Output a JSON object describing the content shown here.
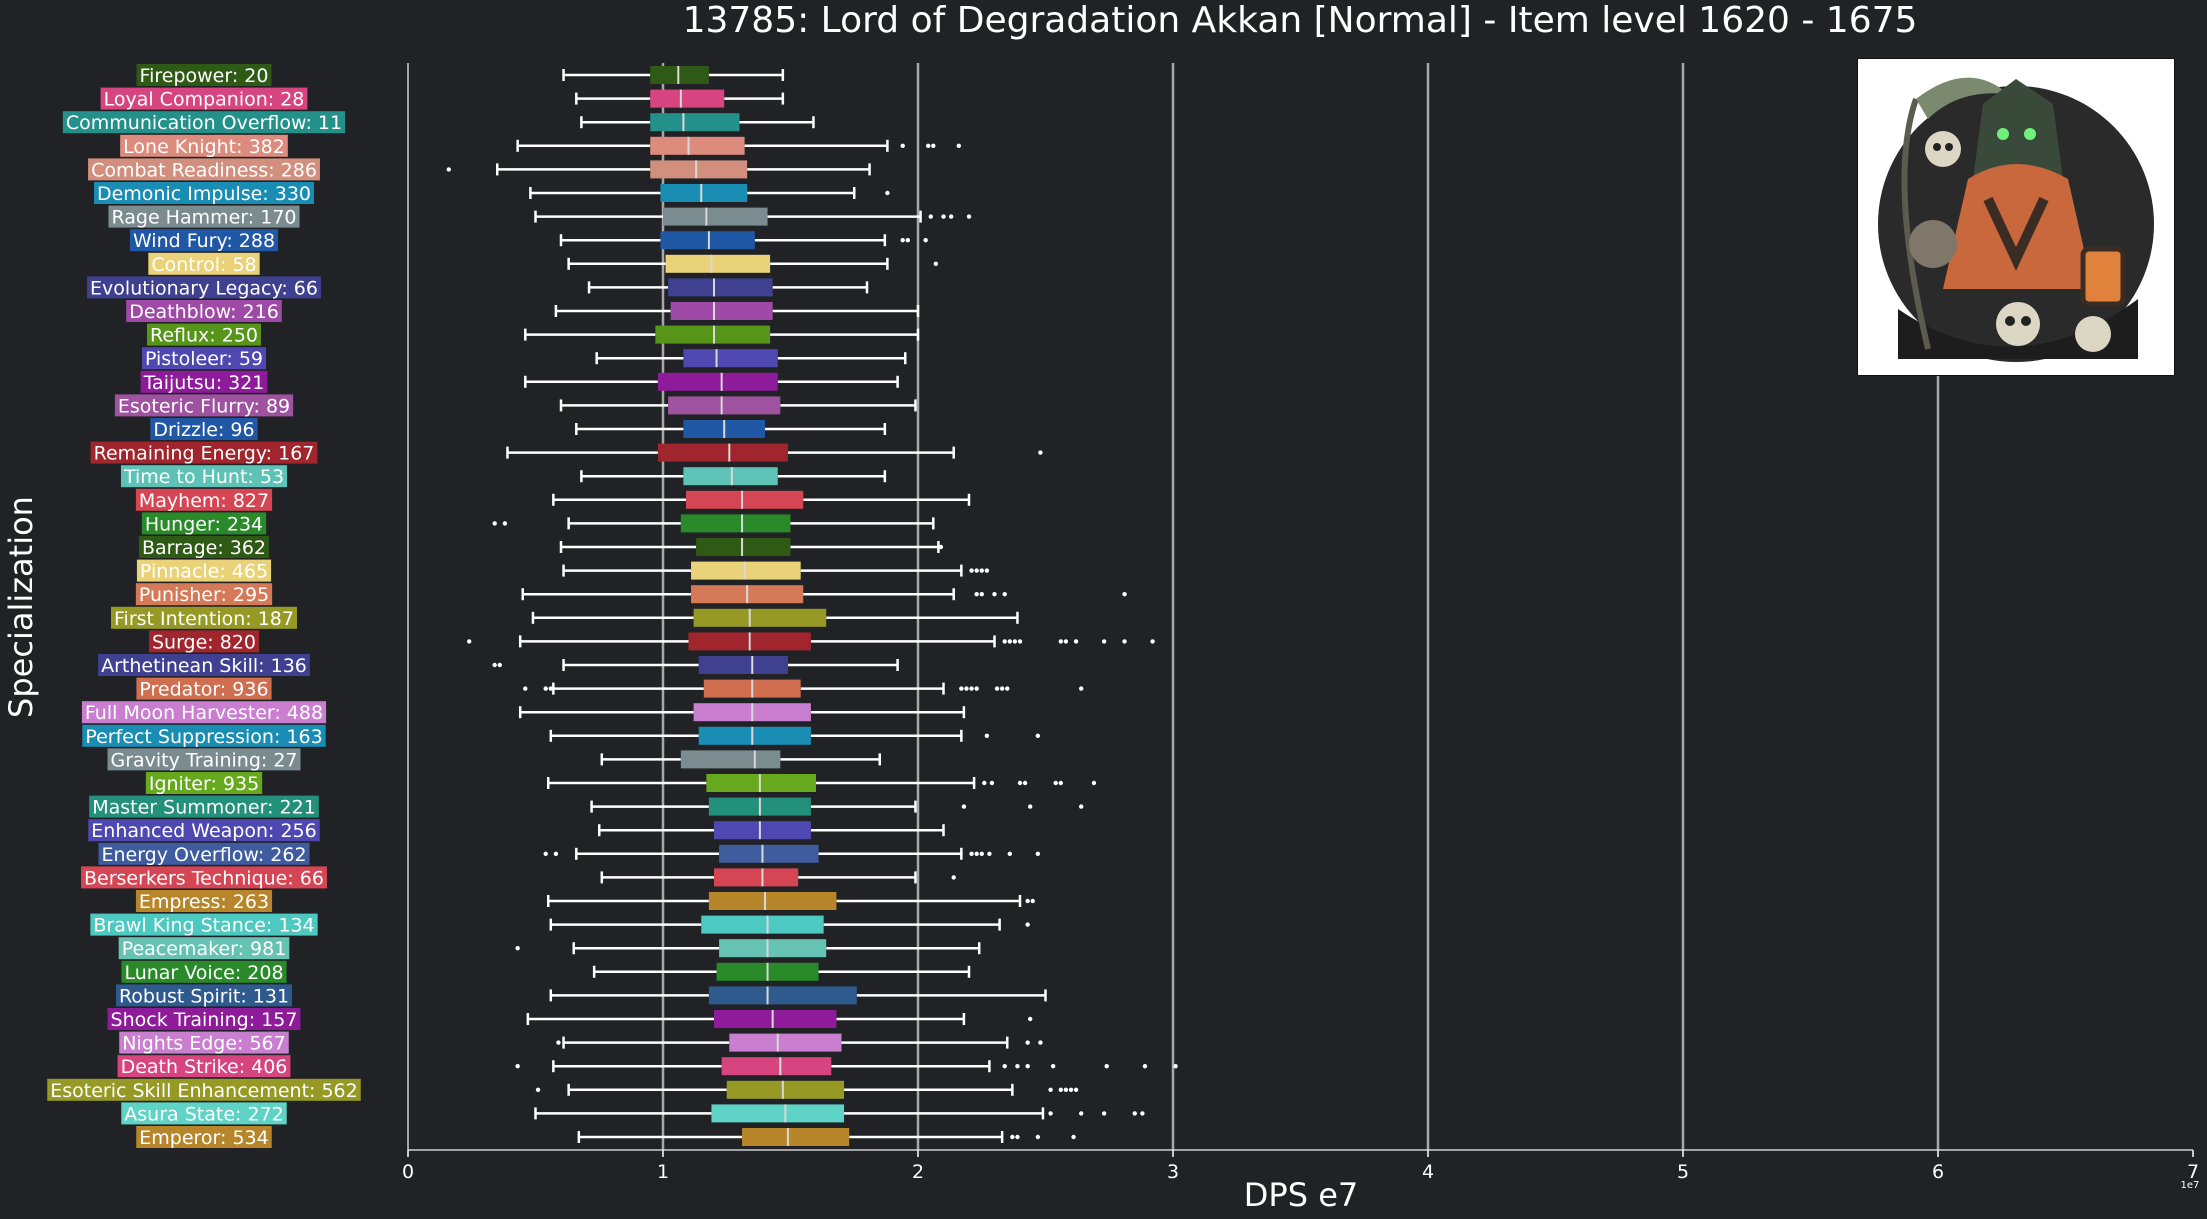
{
  "chart_data": {
    "type": "boxplot",
    "title": "13785: Lord of Degradation Akkan [Normal] - Item level 1620 - 1675",
    "xlabel": "DPS e7",
    "ylabel": "Specialization",
    "offset_text": "1e7",
    "xlim": [
      0,
      7
    ],
    "xticks": [
      0,
      1,
      2,
      3,
      4,
      5,
      6,
      7
    ],
    "grid": "vertical",
    "text_color": "#ffffff",
    "background": "#202226",
    "series": [
      {
        "label": "Firepower: 20",
        "color": "#2f5a16",
        "whislo": 0.61,
        "q1": 0.95,
        "med": 1.06,
        "q3": 1.18,
        "whishi": 1.47,
        "fliers": []
      },
      {
        "label": "Loyal Companion: 28",
        "color": "#d6457f",
        "whislo": 0.66,
        "q1": 0.95,
        "med": 1.07,
        "q3": 1.24,
        "whishi": 1.47,
        "fliers": []
      },
      {
        "label": "Communication Overflow: 11",
        "color": "#23908a",
        "whislo": 0.68,
        "q1": 0.95,
        "med": 1.08,
        "q3": 1.3,
        "whishi": 1.59,
        "fliers": []
      },
      {
        "label": "Lone Knight: 382",
        "color": "#dc8b7c",
        "whislo": 0.43,
        "q1": 0.95,
        "med": 1.1,
        "q3": 1.32,
        "whishi": 1.88,
        "fliers": [
          1.94,
          2.04,
          2.06,
          2.16
        ]
      },
      {
        "label": "Combat Readiness: 286",
        "color": "#d38f7e",
        "whislo": 0.35,
        "q1": 0.95,
        "med": 1.13,
        "q3": 1.33,
        "whishi": 1.81,
        "fliers": [
          0.16
        ]
      },
      {
        "label": "Demonic Impulse: 330",
        "color": "#1a8db4",
        "whislo": 0.48,
        "q1": 0.99,
        "med": 1.15,
        "q3": 1.33,
        "whishi": 1.75,
        "fliers": [
          1.88
        ]
      },
      {
        "label": "Rage Hammer: 170",
        "color": "#7b8c91",
        "whislo": 0.5,
        "q1": 1.0,
        "med": 1.17,
        "q3": 1.41,
        "whishi": 2.01,
        "fliers": [
          2.05,
          2.1,
          2.13,
          2.2
        ]
      },
      {
        "label": "Wind Fury: 288",
        "color": "#2058a6",
        "whislo": 0.6,
        "q1": 0.99,
        "med": 1.18,
        "q3": 1.36,
        "whishi": 1.87,
        "fliers": [
          1.94,
          1.96,
          2.03
        ]
      },
      {
        "label": "Control: 58",
        "color": "#ead279",
        "whislo": 0.63,
        "q1": 1.01,
        "med": 1.19,
        "q3": 1.42,
        "whishi": 1.88,
        "fliers": [
          2.07
        ]
      },
      {
        "label": "Evolutionary Legacy: 66",
        "color": "#3f4090",
        "whislo": 0.71,
        "q1": 1.02,
        "med": 1.2,
        "q3": 1.43,
        "whishi": 1.8,
        "fliers": []
      },
      {
        "label": "Deathblow: 216",
        "color": "#9e4aa6",
        "whislo": 0.58,
        "q1": 1.03,
        "med": 1.2,
        "q3": 1.43,
        "whishi": 2.0,
        "fliers": []
      },
      {
        "label": "Reflux: 250",
        "color": "#56941a",
        "whislo": 0.46,
        "q1": 0.97,
        "med": 1.2,
        "q3": 1.42,
        "whishi": 2.0,
        "fliers": []
      },
      {
        "label": "Pistoleer: 59",
        "color": "#4f48b0",
        "whislo": 0.74,
        "q1": 1.08,
        "med": 1.21,
        "q3": 1.45,
        "whishi": 1.95,
        "fliers": []
      },
      {
        "label": "Taijutsu: 321",
        "color": "#8e1b9a",
        "whislo": 0.46,
        "q1": 0.98,
        "med": 1.23,
        "q3": 1.45,
        "whishi": 1.92,
        "fliers": []
      },
      {
        "label": "Esoteric Flurry: 89",
        "color": "#9e52a0",
        "whislo": 0.6,
        "q1": 1.02,
        "med": 1.23,
        "q3": 1.46,
        "whishi": 1.99,
        "fliers": []
      },
      {
        "label": "Drizzle: 96",
        "color": "#2058a6",
        "whislo": 0.66,
        "q1": 1.08,
        "med": 1.24,
        "q3": 1.4,
        "whishi": 1.87,
        "fliers": []
      },
      {
        "label": "Remaining Energy: 167",
        "color": "#a0252c",
        "whislo": 0.39,
        "q1": 0.98,
        "med": 1.26,
        "q3": 1.49,
        "whishi": 2.14,
        "fliers": [
          2.48
        ]
      },
      {
        "label": "Time to Hunt: 53",
        "color": "#5fc2b7",
        "whislo": 0.68,
        "q1": 1.08,
        "med": 1.27,
        "q3": 1.45,
        "whishi": 1.87,
        "fliers": []
      },
      {
        "label": "Mayhem: 827",
        "color": "#d64553",
        "whislo": 0.57,
        "q1": 1.09,
        "med": 1.31,
        "q3": 1.55,
        "whishi": 2.2,
        "fliers": []
      },
      {
        "label": "Hunger: 234",
        "color": "#2a8a2a",
        "whislo": 0.63,
        "q1": 1.07,
        "med": 1.31,
        "q3": 1.5,
        "whishi": 2.06,
        "fliers": [
          0.34,
          0.38
        ]
      },
      {
        "label": "Barrage: 362",
        "color": "#2f5a16",
        "whislo": 0.6,
        "q1": 1.13,
        "med": 1.31,
        "q3": 1.5,
        "whishi": 2.08,
        "fliers": [
          2.09
        ]
      },
      {
        "label": "Pinnacle: 465",
        "color": "#ead279",
        "whislo": 0.61,
        "q1": 1.11,
        "med": 1.32,
        "q3": 1.54,
        "whishi": 2.17,
        "fliers": [
          2.21,
          2.23,
          2.25,
          2.27
        ]
      },
      {
        "label": "Punisher: 295",
        "color": "#d57a58",
        "whislo": 0.45,
        "q1": 1.11,
        "med": 1.33,
        "q3": 1.55,
        "whishi": 2.14,
        "fliers": [
          2.23,
          2.25,
          2.3,
          2.34,
          2.81
        ]
      },
      {
        "label": "First Intention: 187",
        "color": "#969a24",
        "whislo": 0.49,
        "q1": 1.12,
        "med": 1.34,
        "q3": 1.64,
        "whishi": 2.39,
        "fliers": []
      },
      {
        "label": "Surge: 820",
        "color": "#a0252c",
        "whislo": 0.44,
        "q1": 1.1,
        "med": 1.34,
        "q3": 1.58,
        "whishi": 2.3,
        "fliers": [
          0.24,
          2.34,
          2.36,
          2.38,
          2.4,
          2.56,
          2.58,
          2.62,
          2.73,
          2.81,
          2.92
        ]
      },
      {
        "label": "Arthetinean Skill: 136",
        "color": "#3f4090",
        "whislo": 0.61,
        "q1": 1.14,
        "med": 1.35,
        "q3": 1.49,
        "whishi": 1.92,
        "fliers": [
          0.34,
          0.36
        ]
      },
      {
        "label": "Predator: 936",
        "color": "#d06e50",
        "whislo": 0.57,
        "q1": 1.16,
        "med": 1.35,
        "q3": 1.54,
        "whishi": 2.1,
        "fliers": [
          0.46,
          0.54,
          0.56,
          2.17,
          2.19,
          2.21,
          2.23,
          2.31,
          2.33,
          2.35,
          2.64
        ]
      },
      {
        "label": "Full Moon Harvester: 488",
        "color": "#c97ecf",
        "whislo": 0.44,
        "q1": 1.12,
        "med": 1.35,
        "q3": 1.58,
        "whishi": 2.18,
        "fliers": []
      },
      {
        "label": "Perfect Suppression: 163",
        "color": "#1a8db4",
        "whislo": 0.56,
        "q1": 1.14,
        "med": 1.35,
        "q3": 1.58,
        "whishi": 2.17,
        "fliers": [
          2.27,
          2.47
        ]
      },
      {
        "label": "Gravity Training: 27",
        "color": "#7b8c91",
        "whislo": 0.76,
        "q1": 1.07,
        "med": 1.36,
        "q3": 1.46,
        "whishi": 1.85,
        "fliers": []
      },
      {
        "label": "Igniter: 935",
        "color": "#66a81e",
        "whislo": 0.55,
        "q1": 1.17,
        "med": 1.38,
        "q3": 1.6,
        "whishi": 2.22,
        "fliers": [
          2.26,
          2.29,
          2.4,
          2.42,
          2.54,
          2.56,
          2.69
        ]
      },
      {
        "label": "Master Summoner: 221",
        "color": "#22907a",
        "whislo": 0.72,
        "q1": 1.18,
        "med": 1.38,
        "q3": 1.58,
        "whishi": 1.99,
        "fliers": [
          2.18,
          2.44,
          2.64
        ]
      },
      {
        "label": "Enhanced Weapon: 256",
        "color": "#4f48b0",
        "whislo": 0.75,
        "q1": 1.2,
        "med": 1.38,
        "q3": 1.58,
        "whishi": 2.1,
        "fliers": []
      },
      {
        "label": "Energy Overflow: 262",
        "color": "#3e5c9e",
        "whislo": 0.66,
        "q1": 1.22,
        "med": 1.39,
        "q3": 1.61,
        "whishi": 2.17,
        "fliers": [
          0.54,
          0.58,
          2.21,
          2.23,
          2.25,
          2.28,
          2.36,
          2.47
        ]
      },
      {
        "label": "Berserkers Technique: 66",
        "color": "#d64553",
        "whislo": 0.76,
        "q1": 1.2,
        "med": 1.39,
        "q3": 1.53,
        "whishi": 1.99,
        "fliers": [
          2.14
        ]
      },
      {
        "label": "Empress: 263",
        "color": "#b8862a",
        "whislo": 0.55,
        "q1": 1.18,
        "med": 1.4,
        "q3": 1.68,
        "whishi": 2.4,
        "fliers": [
          2.43,
          2.45
        ]
      },
      {
        "label": "Brawl King Stance: 134",
        "color": "#4ec9c1",
        "whislo": 0.56,
        "q1": 1.15,
        "med": 1.41,
        "q3": 1.63,
        "whishi": 2.32,
        "fliers": [
          2.43
        ]
      },
      {
        "label": "Peacemaker: 981",
        "color": "#66c2b2",
        "whislo": 0.65,
        "q1": 1.22,
        "med": 1.41,
        "q3": 1.64,
        "whishi": 2.24,
        "fliers": [
          0.43
        ]
      },
      {
        "label": "Lunar Voice: 208",
        "color": "#2a8a2a",
        "whislo": 0.73,
        "q1": 1.21,
        "med": 1.41,
        "q3": 1.61,
        "whishi": 2.2,
        "fliers": []
      },
      {
        "label": "Robust Spirit: 131",
        "color": "#2e5a8e",
        "whislo": 0.56,
        "q1": 1.18,
        "med": 1.41,
        "q3": 1.76,
        "whishi": 2.5,
        "fliers": []
      },
      {
        "label": "Shock Training: 157",
        "color": "#8e1b9a",
        "whislo": 0.47,
        "q1": 1.2,
        "med": 1.43,
        "q3": 1.68,
        "whishi": 2.18,
        "fliers": [
          2.44
        ]
      },
      {
        "label": "Nights Edge: 567",
        "color": "#c97ecf",
        "whislo": 0.61,
        "q1": 1.26,
        "med": 1.45,
        "q3": 1.7,
        "whishi": 2.35,
        "fliers": [
          0.59,
          2.43,
          2.48
        ]
      },
      {
        "label": "Death Strike: 406",
        "color": "#d6457f",
        "whislo": 0.57,
        "q1": 1.23,
        "med": 1.46,
        "q3": 1.66,
        "whishi": 2.28,
        "fliers": [
          0.43,
          2.34,
          2.39,
          2.43,
          2.53,
          2.74,
          2.89,
          3.01
        ]
      },
      {
        "label": "Esoteric Skill Enhancement: 562",
        "color": "#969a24",
        "whislo": 0.63,
        "q1": 1.25,
        "med": 1.47,
        "q3": 1.71,
        "whishi": 2.37,
        "fliers": [
          0.51,
          2.52,
          2.56,
          2.58,
          2.6,
          2.62
        ]
      },
      {
        "label": "Asura State: 272",
        "color": "#5fd3c5",
        "whislo": 0.5,
        "q1": 1.19,
        "med": 1.48,
        "q3": 1.71,
        "whishi": 2.49,
        "fliers": [
          2.52,
          2.64,
          2.73,
          2.85,
          2.88
        ]
      },
      {
        "label": "Emperor: 534",
        "color": "#b8862a",
        "whislo": 0.67,
        "q1": 1.31,
        "med": 1.49,
        "q3": 1.73,
        "whishi": 2.33,
        "fliers": [
          2.37,
          2.39,
          2.47,
          2.61
        ]
      }
    ]
  }
}
